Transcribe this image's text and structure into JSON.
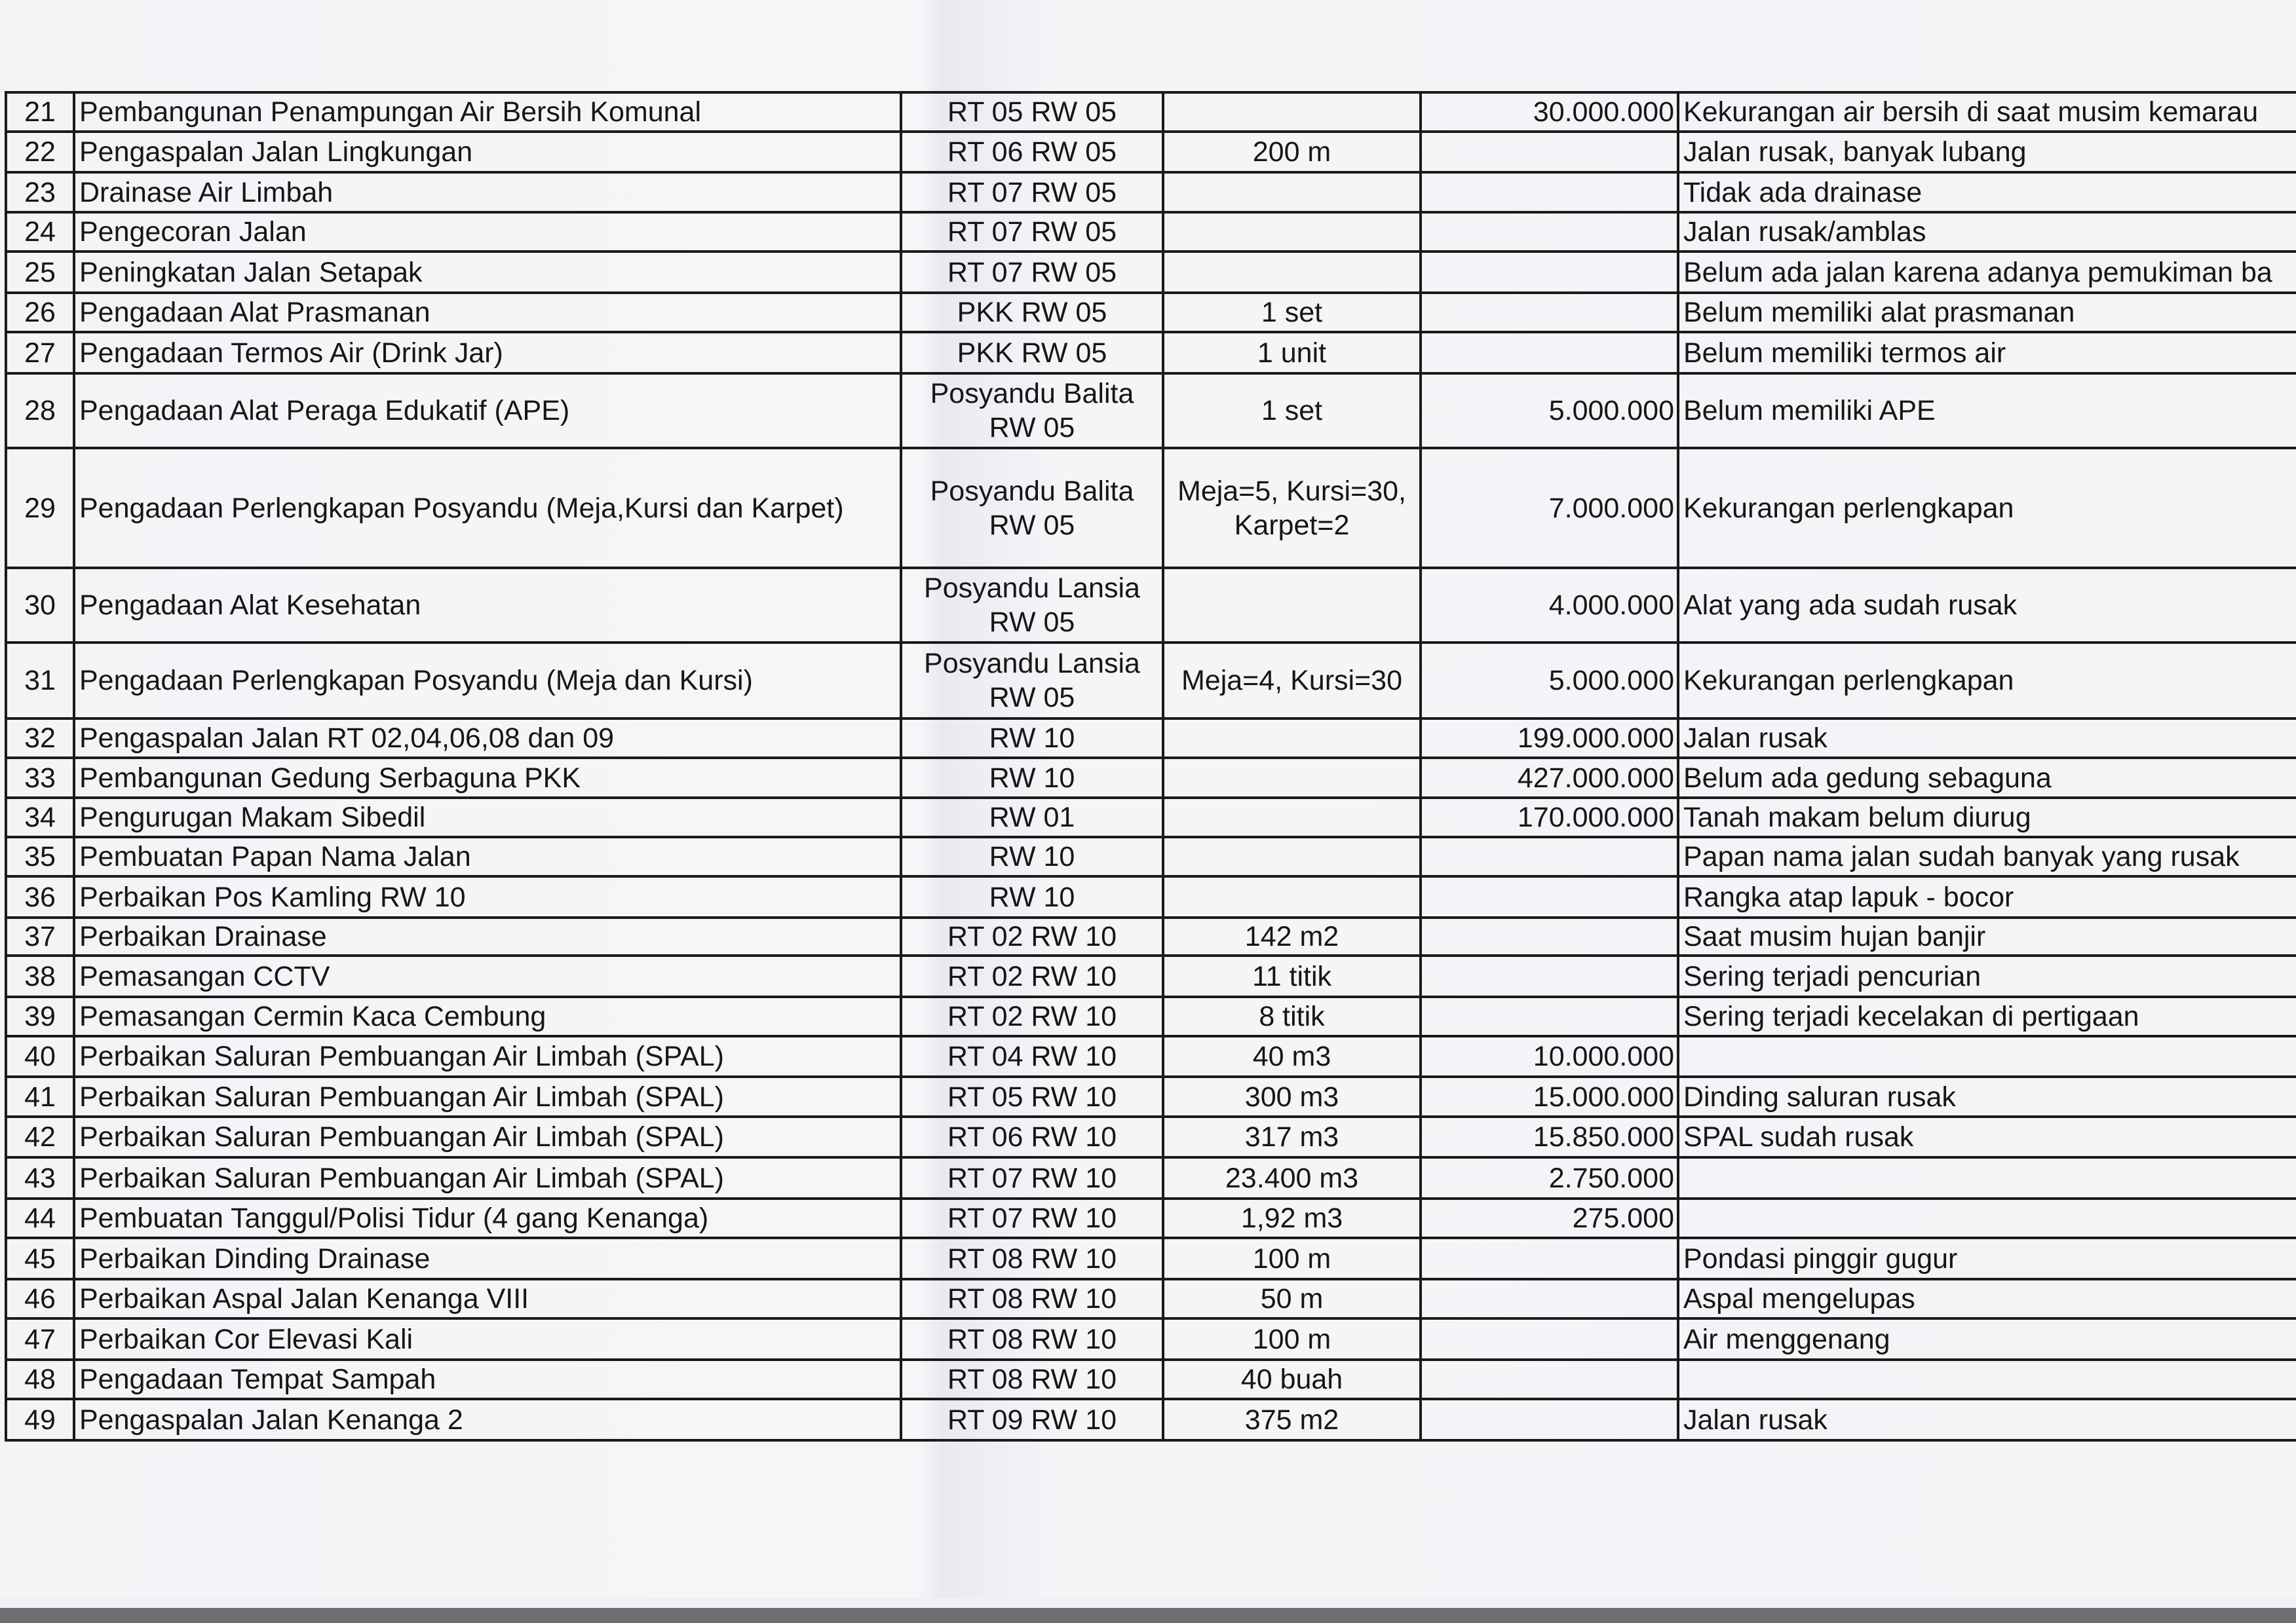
{
  "rows": [
    {
      "no": "21",
      "name": "Pembangunan Penampungan Air Bersih Komunal",
      "location": "RT 05 RW 05",
      "volume": "",
      "cost": "30.000.000",
      "problem": "Kekurangan air bersih di saat musim kemarau"
    },
    {
      "no": "22",
      "name": "Pengaspalan Jalan Lingkungan",
      "location": "RT 06 RW 05",
      "volume": "200 m",
      "cost": "",
      "problem": "Jalan rusak, banyak lubang"
    },
    {
      "no": "23",
      "name": "Drainase Air Limbah",
      "location": "RT 07 RW 05",
      "volume": "",
      "cost": "",
      "problem": "Tidak ada drainase"
    },
    {
      "no": "24",
      "name": "Pengecoran Jalan",
      "location": "RT 07 RW 05",
      "volume": "",
      "cost": "",
      "problem": "Jalan rusak/amblas"
    },
    {
      "no": "25",
      "name": "Peningkatan Jalan Setapak",
      "location": "RT 07 RW 05",
      "volume": "",
      "cost": "",
      "problem": "Belum ada jalan karena adanya pemukiman ba"
    },
    {
      "no": "26",
      "name": "Pengadaan Alat Prasmanan",
      "location": "PKK RW 05",
      "volume": "1 set",
      "cost": "",
      "problem": "Belum memiliki alat prasmanan"
    },
    {
      "no": "27",
      "name": "Pengadaan Termos Air (Drink Jar)",
      "location": "PKK RW 05",
      "volume": "1 unit",
      "cost": "",
      "problem": "Belum memiliki termos air"
    },
    {
      "no": "28",
      "name": "Pengadaan Alat Peraga Edukatif (APE)",
      "location": "Posyandu Balita RW 05",
      "volume": "1 set",
      "cost": "5.000.000",
      "problem": "Belum memiliki APE"
    },
    {
      "no": "29",
      "name": "Pengadaan Perlengkapan Posyandu (Meja,Kursi dan Karpet)",
      "location": "Posyandu Balita RW 05",
      "volume": "Meja=5, Kursi=30, Karpet=2",
      "cost": "7.000.000",
      "problem": "Kekurangan perlengkapan"
    },
    {
      "no": "30",
      "name": "Pengadaan Alat Kesehatan",
      "location": "Posyandu Lansia RW 05",
      "volume": "",
      "cost": "4.000.000",
      "problem": "Alat yang ada sudah rusak"
    },
    {
      "no": "31",
      "name": "Pengadaan Perlengkapan Posyandu (Meja dan Kursi)",
      "location": "Posyandu Lansia RW 05",
      "volume": "Meja=4, Kursi=30",
      "cost": "5.000.000",
      "problem": "Kekurangan perlengkapan"
    },
    {
      "no": "32",
      "name": "Pengaspalan Jalan RT 02,04,06,08 dan 09",
      "location": "RW 10",
      "volume": "",
      "cost": "199.000.000",
      "problem": "Jalan rusak"
    },
    {
      "no": "33",
      "name": "Pembangunan Gedung Serbaguna PKK",
      "location": "RW 10",
      "volume": "",
      "cost": "427.000.000",
      "problem": "Belum ada gedung sebaguna"
    },
    {
      "no": "34",
      "name": "Pengurugan Makam Sibedil",
      "location": "RW 01",
      "volume": "",
      "cost": "170.000.000",
      "problem": "Tanah makam belum diurug"
    },
    {
      "no": "35",
      "name": "Pembuatan Papan Nama Jalan",
      "location": "RW 10",
      "volume": "",
      "cost": "",
      "problem": "Papan nama jalan sudah banyak yang rusak"
    },
    {
      "no": "36",
      "name": "Perbaikan Pos Kamling RW 10",
      "location": "RW 10",
      "volume": "",
      "cost": "",
      "problem": "Rangka atap lapuk - bocor"
    },
    {
      "no": "37",
      "name": "Perbaikan Drainase",
      "location": "RT 02 RW 10",
      "volume": "142 m2",
      "cost": "",
      "problem": "Saat musim hujan banjir"
    },
    {
      "no": "38",
      "name": "Pemasangan CCTV",
      "location": "RT 02 RW 10",
      "volume": "11 titik",
      "cost": "",
      "problem": "Sering terjadi pencurian"
    },
    {
      "no": "39",
      "name": "Pemasangan Cermin Kaca Cembung",
      "location": "RT 02 RW 10",
      "volume": "8 titik",
      "cost": "",
      "problem": "Sering terjadi kecelakan di pertigaan"
    },
    {
      "no": "40",
      "name": "Perbaikan Saluran Pembuangan Air Limbah (SPAL)",
      "location": "RT 04 RW 10",
      "volume": "40 m3",
      "cost": "10.000.000",
      "problem": ""
    },
    {
      "no": "41",
      "name": "Perbaikan Saluran Pembuangan Air Limbah (SPAL)",
      "location": "RT 05 RW 10",
      "volume": "300 m3",
      "cost": "15.000.000",
      "problem": "Dinding saluran rusak"
    },
    {
      "no": "42",
      "name": "Perbaikan Saluran Pembuangan Air Limbah (SPAL)",
      "location": "RT 06 RW 10",
      "volume": "317 m3",
      "cost": "15.850.000",
      "problem": "SPAL sudah rusak"
    },
    {
      "no": "43",
      "name": "Perbaikan Saluran Pembuangan Air Limbah (SPAL)",
      "location": "RT 07 RW 10",
      "volume": "23.400 m3",
      "cost": "2.750.000",
      "problem": ""
    },
    {
      "no": "44",
      "name": "Pembuatan Tanggul/Polisi Tidur (4 gang Kenanga)",
      "location": "RT 07 RW 10",
      "volume": "1,92 m3",
      "cost": "275.000",
      "problem": ""
    },
    {
      "no": "45",
      "name": "Perbaikan Dinding Drainase",
      "location": "RT 08 RW 10",
      "volume": "100 m",
      "cost": "",
      "problem": "Pondasi pinggir gugur"
    },
    {
      "no": "46",
      "name": "Perbaikan Aspal Jalan Kenanga VIII",
      "location": "RT 08 RW 10",
      "volume": "50 m",
      "cost": "",
      "problem": "Aspal mengelupas"
    },
    {
      "no": "47",
      "name": "Perbaikan Cor Elevasi Kali",
      "location": "RT 08 RW 10",
      "volume": "100 m",
      "cost": "",
      "problem": "Air menggenang"
    },
    {
      "no": "48",
      "name": "Pengadaan Tempat Sampah",
      "location": "RT 08 RW 10",
      "volume": "40 buah",
      "cost": "",
      "problem": ""
    },
    {
      "no": "49",
      "name": "Pengaspalan Jalan Kenanga 2",
      "location": "RT 09 RW 10",
      "volume": "375 m2",
      "cost": "",
      "problem": "Jalan rusak"
    }
  ]
}
